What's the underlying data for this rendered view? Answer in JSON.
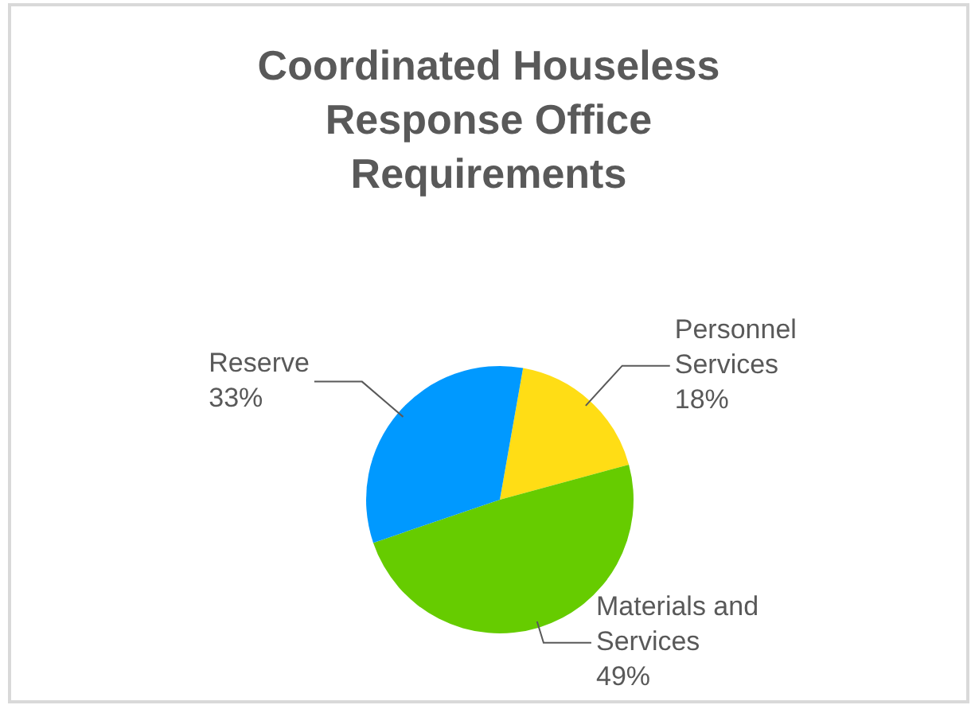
{
  "chart_data": {
    "type": "pie",
    "title": "Coordinated Houseless Response Office Requirements",
    "categories": [
      "Personnel Services",
      "Materials and Services",
      "Reserve"
    ],
    "values": [
      18,
      49,
      33
    ],
    "value_labels": [
      "18%",
      "49%",
      "33%"
    ],
    "colors": [
      "#ffdd15",
      "#66cc00",
      "#0099ff"
    ],
    "legend": false
  }
}
